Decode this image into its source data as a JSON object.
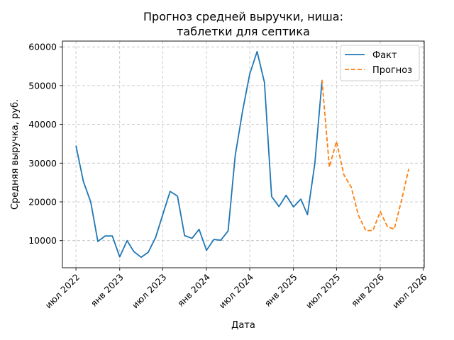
{
  "chart_data": {
    "type": "line",
    "title_lines": [
      "Прогноз средней выручки, ниша:",
      "таблетки для септика"
    ],
    "xlabel": "Дата",
    "ylabel": "Средняя выручка, руб.",
    "ylim": [
      3000,
      61500
    ],
    "yticks": [
      10000,
      20000,
      30000,
      40000,
      50000,
      60000
    ],
    "xlim": [
      "2022-05-05",
      "2026-07-05"
    ],
    "xticks": [
      {
        "date": "2022-07-01",
        "label": "июл 2022"
      },
      {
        "date": "2023-01-01",
        "label": "янв 2023"
      },
      {
        "date": "2023-07-01",
        "label": "июл 2023"
      },
      {
        "date": "2024-01-01",
        "label": "янв 2024"
      },
      {
        "date": "2024-07-01",
        "label": "июл 2024"
      },
      {
        "date": "2025-01-01",
        "label": "янв 2025"
      },
      {
        "date": "2025-07-01",
        "label": "июл 2025"
      },
      {
        "date": "2026-01-01",
        "label": "янв 2026"
      },
      {
        "date": "2026-07-01",
        "label": "июл 2026"
      }
    ],
    "grid": true,
    "legend_position": "top-right",
    "series": [
      {
        "name": "Факт",
        "color": "#1f77b4",
        "style": "solid",
        "points": [
          {
            "x": "2022-07-01",
            "y": 34500
          },
          {
            "x": "2022-08-01",
            "y": 25300
          },
          {
            "x": "2022-09-01",
            "y": 20000
          },
          {
            "x": "2022-10-01",
            "y": 9800
          },
          {
            "x": "2022-11-01",
            "y": 11200
          },
          {
            "x": "2022-12-01",
            "y": 11200
          },
          {
            "x": "2023-01-01",
            "y": 5800
          },
          {
            "x": "2023-02-01",
            "y": 10000
          },
          {
            "x": "2023-03-01",
            "y": 7200
          },
          {
            "x": "2023-04-01",
            "y": 5700
          },
          {
            "x": "2023-05-01",
            "y": 7000
          },
          {
            "x": "2023-06-01",
            "y": 10800
          },
          {
            "x": "2023-07-01",
            "y": 16700
          },
          {
            "x": "2023-08-01",
            "y": 22700
          },
          {
            "x": "2023-09-01",
            "y": 21500
          },
          {
            "x": "2023-10-01",
            "y": 11300
          },
          {
            "x": "2023-11-01",
            "y": 10600
          },
          {
            "x": "2023-12-01",
            "y": 12900
          },
          {
            "x": "2024-01-01",
            "y": 7500
          },
          {
            "x": "2024-02-01",
            "y": 10300
          },
          {
            "x": "2024-03-01",
            "y": 10100
          },
          {
            "x": "2024-04-01",
            "y": 12500
          },
          {
            "x": "2024-05-01",
            "y": 32000
          },
          {
            "x": "2024-06-01",
            "y": 43500
          },
          {
            "x": "2024-07-01",
            "y": 53000
          },
          {
            "x": "2024-08-01",
            "y": 58800
          },
          {
            "x": "2024-09-01",
            "y": 50800
          },
          {
            "x": "2024-10-01",
            "y": 21400
          },
          {
            "x": "2024-11-01",
            "y": 18800
          },
          {
            "x": "2024-12-01",
            "y": 21700
          },
          {
            "x": "2025-01-01",
            "y": 18700
          },
          {
            "x": "2025-02-01",
            "y": 20700
          },
          {
            "x": "2025-03-01",
            "y": 16700
          },
          {
            "x": "2025-04-01",
            "y": 30000
          },
          {
            "x": "2025-05-01",
            "y": 51200
          }
        ]
      },
      {
        "name": "Прогноз",
        "color": "#ff7f0e",
        "style": "dashed",
        "points": [
          {
            "x": "2025-05-01",
            "y": 51500
          },
          {
            "x": "2025-06-01",
            "y": 29000
          },
          {
            "x": "2025-07-01",
            "y": 35600
          },
          {
            "x": "2025-08-01",
            "y": 27000
          },
          {
            "x": "2025-09-01",
            "y": 23800
          },
          {
            "x": "2025-10-01",
            "y": 16600
          },
          {
            "x": "2025-11-01",
            "y": 12600
          },
          {
            "x": "2025-12-01",
            "y": 12600
          },
          {
            "x": "2026-01-01",
            "y": 17500
          },
          {
            "x": "2026-02-01",
            "y": 13500
          },
          {
            "x": "2026-03-01",
            "y": 13000
          },
          {
            "x": "2026-04-01",
            "y": 20500
          },
          {
            "x": "2026-05-01",
            "y": 28500
          }
        ]
      }
    ]
  }
}
